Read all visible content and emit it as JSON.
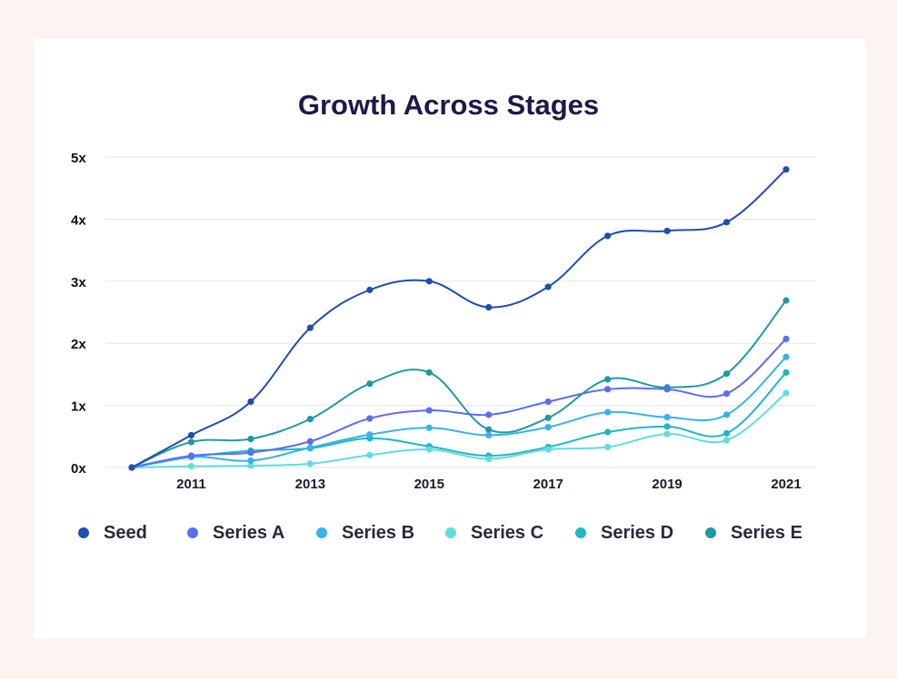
{
  "chart_data": {
    "type": "line",
    "title": "Growth Across Stages",
    "xlabel": "",
    "ylabel": "",
    "x": [
      2010,
      2011,
      2012,
      2013,
      2014,
      2015,
      2016,
      2017,
      2018,
      2019,
      2020,
      2021
    ],
    "x_tick_labels": [
      "2011",
      "2013",
      "2015",
      "2017",
      "2019",
      "2021"
    ],
    "y_tick_labels": [
      "0x",
      "1x",
      "2x",
      "3x",
      "4x",
      "5x"
    ],
    "ylim": [
      0,
      5
    ],
    "grid": true,
    "legend_position": "bottom",
    "series": [
      {
        "name": "Seed",
        "color": "#1f4eaf",
        "values": [
          0,
          0.52,
          1.06,
          2.25,
          2.86,
          3.0,
          2.58,
          2.91,
          3.73,
          3.81,
          3.95,
          4.8
        ]
      },
      {
        "name": "Series A",
        "color": "#5b6df2",
        "values": [
          0,
          0.19,
          0.24,
          0.42,
          0.79,
          0.92,
          0.85,
          1.06,
          1.26,
          1.26,
          1.19,
          2.07
        ]
      },
      {
        "name": "Series B",
        "color": "#36b3ec",
        "values": [
          0,
          0.17,
          0.11,
          0.32,
          0.53,
          0.64,
          0.52,
          0.65,
          0.89,
          0.81,
          0.85,
          1.78
        ]
      },
      {
        "name": "Series C",
        "color": "#5fdde0",
        "values": [
          0,
          0.02,
          0.03,
          0.06,
          0.2,
          0.29,
          0.14,
          0.29,
          0.33,
          0.54,
          0.44,
          1.2
        ]
      },
      {
        "name": "Series D",
        "color": "#1cb9c4",
        "values": [
          0,
          0.17,
          0.27,
          0.31,
          0.47,
          0.34,
          0.19,
          0.33,
          0.57,
          0.66,
          0.55,
          1.53
        ]
      },
      {
        "name": "Series E",
        "color": "#1f9aa0",
        "values": [
          0,
          0.41,
          0.46,
          0.78,
          1.35,
          1.53,
          0.61,
          0.8,
          1.42,
          1.29,
          1.51,
          2.69
        ]
      }
    ]
  }
}
